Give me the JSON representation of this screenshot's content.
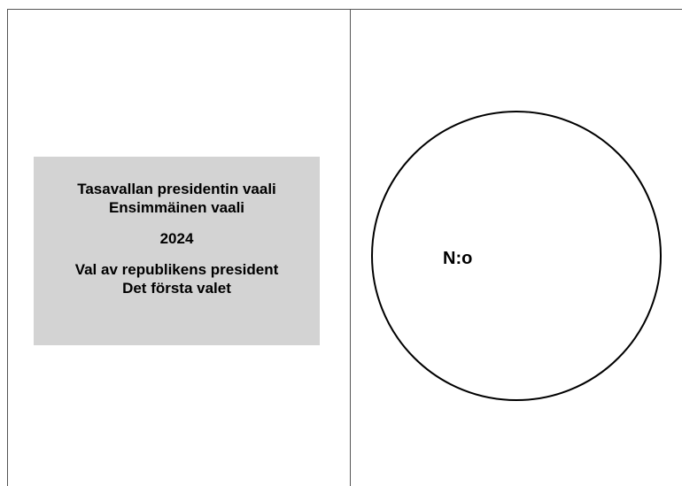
{
  "ballot": {
    "title_fi_line1": "Tasavallan presidentin vaali",
    "title_fi_line2": "Ensimmäinen vaali",
    "year": "2024",
    "title_sv_line1": "Val av republikens president",
    "title_sv_line2": "Det första valet",
    "number_label": "N:o"
  },
  "colors": {
    "info_box_bg": "#d3d3d3",
    "border": "#555555",
    "circle": "#000000"
  }
}
